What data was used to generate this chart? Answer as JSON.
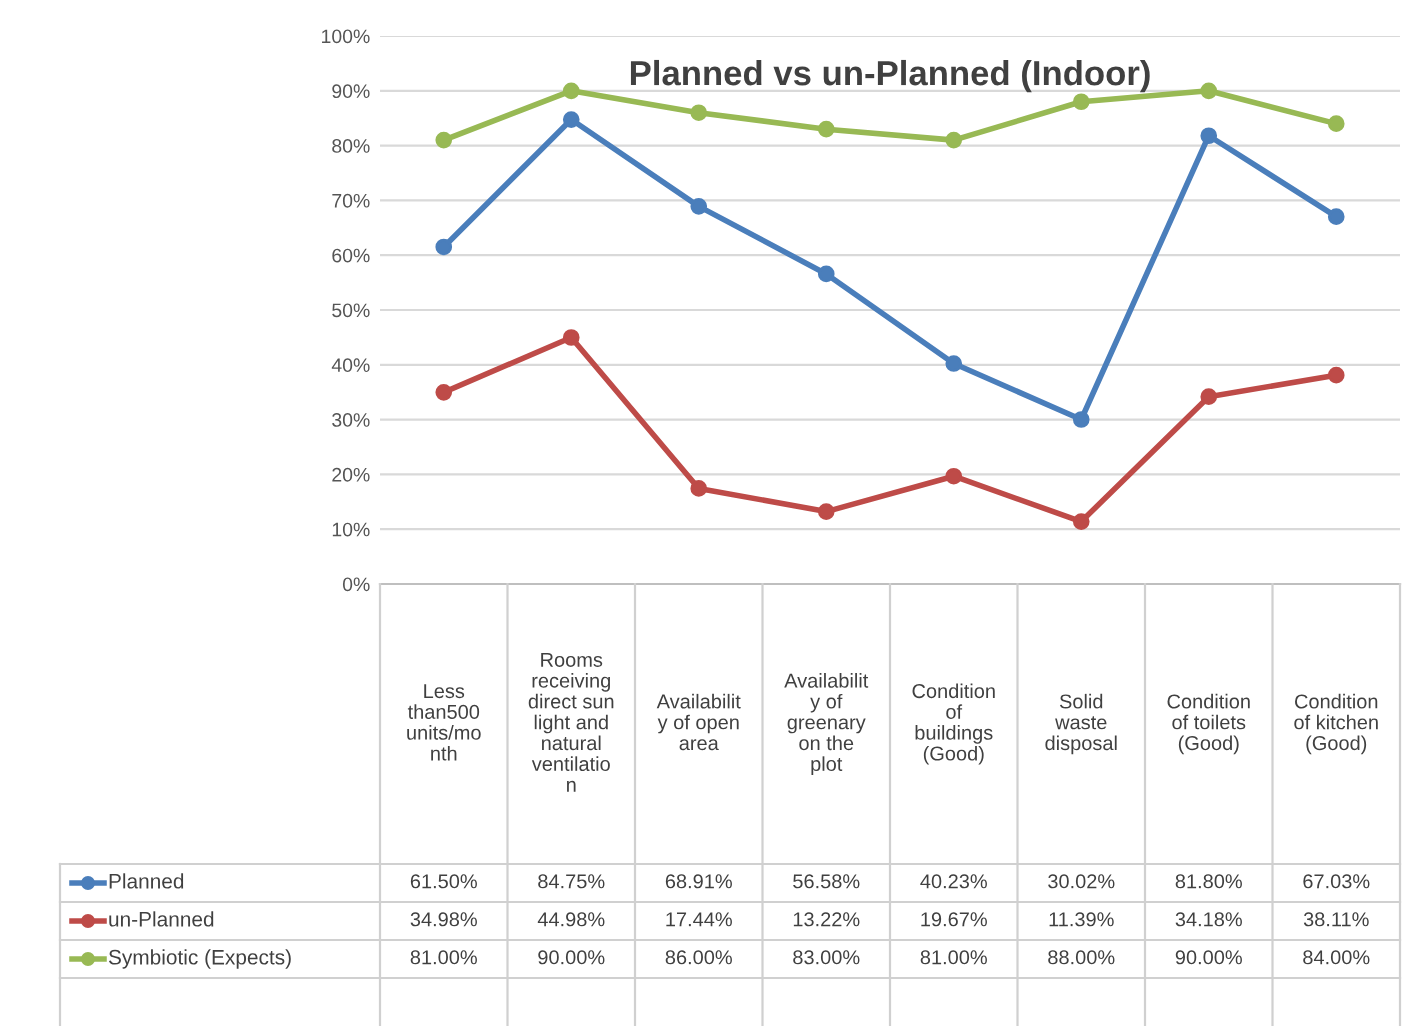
{
  "chart_data": {
    "type": "line",
    "title": "Planned vs un-Planned (Indoor)",
    "categories": [
      "Less\nthan500\nunits/mo\nnth",
      "Rooms\nreceiving\ndirect sun\nlight and\nnatural\nventilatio\nn",
      "Availabilit\ny of open\narea",
      "Availabilit\ny of\ngreenary\non the\nplot",
      "Condition\nof\nbuildings\n(Good)",
      "Solid\nwaste\ndisposal",
      "Condition\nof toilets\n(Good)",
      "Condition\nof kitchen\n(Good)"
    ],
    "series": [
      {
        "name": "Planned",
        "color": "#4a7ebb",
        "values": [
          61.5,
          84.75,
          68.91,
          56.58,
          40.23,
          30.02,
          81.8,
          67.03
        ],
        "value_labels": [
          "61.50%",
          "84.75%",
          "68.91%",
          "56.58%",
          "40.23%",
          "30.02%",
          "81.80%",
          "67.03%"
        ]
      },
      {
        "name": "un-Planned",
        "color": "#be4b48",
        "values": [
          34.98,
          44.98,
          17.44,
          13.22,
          19.67,
          11.39,
          34.18,
          38.11
        ],
        "value_labels": [
          "34.98%",
          "44.98%",
          "17.44%",
          "13.22%",
          "19.67%",
          "11.39%",
          "34.18%",
          "38.11%"
        ]
      },
      {
        "name": "Symbiotic (Expects)",
        "color": "#98b954",
        "values": [
          81.0,
          90.0,
          86.0,
          83.0,
          81.0,
          88.0,
          90.0,
          84.0
        ],
        "value_labels": [
          "81.00%",
          "90.00%",
          "86.00%",
          "83.00%",
          "81.00%",
          "88.00%",
          "90.00%",
          "84.00%"
        ]
      }
    ],
    "ylim": [
      0,
      100
    ],
    "yticks": [
      {
        "value": 0,
        "label": "0%"
      },
      {
        "value": 10,
        "label": "10%"
      },
      {
        "value": 20,
        "label": "20%"
      },
      {
        "value": 30,
        "label": "30%"
      },
      {
        "value": 40,
        "label": "40%"
      },
      {
        "value": 50,
        "label": "50%"
      },
      {
        "value": 60,
        "label": "60%"
      },
      {
        "value": 70,
        "label": "70%"
      },
      {
        "value": 80,
        "label": "80%"
      },
      {
        "value": 90,
        "label": "90%"
      },
      {
        "value": 100,
        "label": "100%"
      }
    ],
    "grid": "y",
    "legend": "bottom",
    "marker": "circle",
    "line_style": "solid"
  }
}
